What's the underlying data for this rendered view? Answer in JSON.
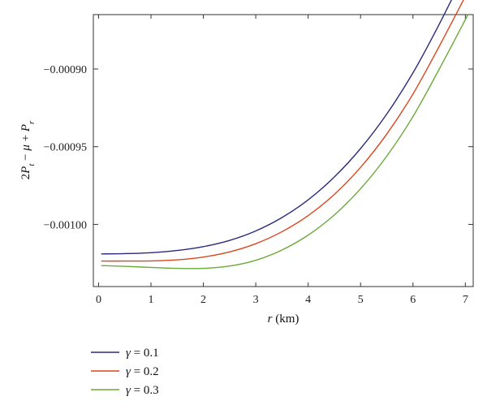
{
  "chart_data": {
    "type": "line",
    "xlabel": {
      "var": "r",
      "unit": " (km)"
    },
    "ylabel": {
      "parts": [
        {
          "t": "2",
          "italic": false
        },
        {
          "t": "P",
          "italic": true
        },
        {
          "t": "t",
          "italic": true,
          "sub": true
        },
        {
          "t": " − ",
          "italic": false
        },
        {
          "t": "μ",
          "italic": true
        },
        {
          "t": " + ",
          "italic": false
        },
        {
          "t": "P",
          "italic": true
        },
        {
          "t": "r",
          "italic": true,
          "sub": true
        }
      ]
    },
    "xlim": [
      -0.1,
      7.15
    ],
    "ylim": [
      -0.00104,
      -0.000865
    ],
    "xticks": [
      0,
      1,
      2,
      3,
      4,
      5,
      6,
      7
    ],
    "xtick_labels": [
      "0",
      "1",
      "2",
      "3",
      "4",
      "5",
      "6",
      "7"
    ],
    "yticks": [
      -0.0009,
      -0.00095,
      -0.001
    ],
    "ytick_labels": [
      "−0.00090",
      "−0.00095",
      "−0.00100"
    ],
    "grid": false,
    "legend_position": "bottom-left",
    "x": [
      0.05,
      0.5,
      1,
      1.5,
      2,
      2.5,
      3,
      3.5,
      4,
      4.5,
      5,
      5.5,
      6,
      6.5,
      7.05
    ],
    "series": [
      {
        "name": "γ = 0.1",
        "color": "#2b2a7e",
        "values": [
          -0.001019,
          -0.0010188,
          -0.0010182,
          -0.0010168,
          -0.0010143,
          -0.0010103,
          -0.0010042,
          -0.0009956,
          -0.0009842,
          -0.0009695,
          -0.0009512,
          -0.000929,
          -0.0009025,
          -0.0008713,
          -0.000834
        ]
      },
      {
        "name": "γ = 0.2",
        "color": "#d9471f",
        "values": [
          -0.0010236,
          -0.0010236,
          -0.0010235,
          -0.0010228,
          -0.001021,
          -0.0010177,
          -0.0010124,
          -0.0010047,
          -0.0009943,
          -0.0009807,
          -0.0009633,
          -0.0009419,
          -0.0009161,
          -0.0008855,
          -0.00085
        ]
      },
      {
        "name": "γ = 0.3",
        "color": "#6aaa3a",
        "values": [
          -0.0010265,
          -0.001027,
          -0.0010277,
          -0.0010283,
          -0.0010283,
          -0.0010268,
          -0.0010231,
          -0.0010165,
          -0.0010069,
          -0.0009939,
          -0.0009771,
          -0.0009561,
          -0.0009306,
          -0.0009002,
          -0.000865
        ]
      }
    ]
  }
}
